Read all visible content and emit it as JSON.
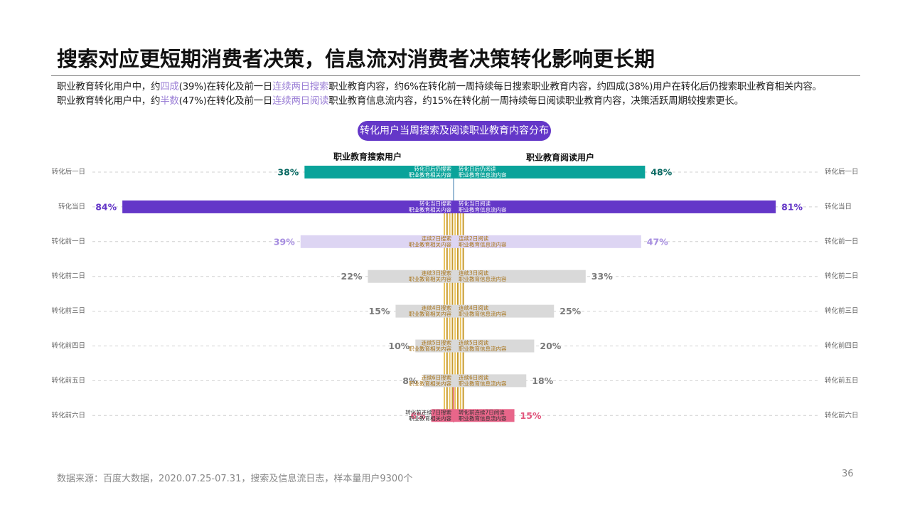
{
  "header": {
    "title": "搜索对应更短期消费者决策，信息流对消费者决策转化影响更长期",
    "subtitle": [
      [
        {
          "text": "职业教育转化用户中，约"
        },
        {
          "text": "四成",
          "color": "#9b7fd6"
        },
        {
          "text": "(39%)在转化及前一日"
        },
        {
          "text": "连续两日搜索",
          "color": "#9b7fd6"
        },
        {
          "text": "职业教育内容，约6%在转化前一周持续每日搜索职业教育内容，约四成(38%)用户在转化后仍搜索职业教育相关内容。"
        }
      ],
      [
        {
          "text": "职业教育转化用户中，约"
        },
        {
          "text": "半数",
          "color": "#9b7fd6"
        },
        {
          "text": "(47%)在转化及前一日"
        },
        {
          "text": "连续两日阅读",
          "color": "#9b7fd6"
        },
        {
          "text": "职业教育信息流内容，约15%在转化前一周持续每日阅读职业教育内容，决策活跃周期较搜索更长。"
        }
      ]
    ]
  },
  "chart_data": {
    "type": "butterfly",
    "title": "转化用户当周搜索及阅读职业教育内容分布",
    "categories": [
      "转化后一日",
      "转化当日",
      "转化前一日",
      "转化前二日",
      "转化前三日",
      "转化前四日",
      "转化前五日",
      "转化前六日"
    ],
    "bar_colors": [
      "#0aa39a",
      "#6437c8",
      "#ddd5f3",
      "#d9d9d9",
      "#d9d9d9",
      "#d9d9d9",
      "#d9d9d9",
      "#e8668a"
    ],
    "value_label_colors": [
      "#0b6b64",
      "#6437c8",
      "#a68de0",
      "#7a7a7a",
      "#7a7a7a",
      "#7a7a7a",
      "#7a7a7a",
      "#e2557c"
    ],
    "inner_label_colors": [
      "#ffffff",
      "#ffffff",
      "#a8741a",
      "#a8741a",
      "#a8741a",
      "#a8741a",
      "#a8741a",
      "#333333"
    ],
    "series": [
      {
        "name": "职业教育搜索用户",
        "side": "left",
        "values": [
          38,
          84,
          39,
          22,
          15,
          10,
          8,
          6
        ],
        "value_labels": [
          "38%",
          "84%",
          "39%",
          "22%",
          "15%",
          "10%",
          "8%",
          "6%"
        ],
        "inner_labels": [
          [
            "转化日后仍搜索",
            "职业教育相关内容"
          ],
          [
            "转化当日搜索",
            "职业教育相关内容"
          ],
          [
            "连续2日搜索",
            "职业教育相关内容"
          ],
          [
            "连续3日搜索",
            "职业教育相关内容"
          ],
          [
            "连续4日搜索",
            "职业教育相关内容"
          ],
          [
            "连续5日搜索",
            "职业教育相关内容"
          ],
          [
            "连续6日搜索",
            "职业教育相关内容"
          ],
          [
            "转化前连续7日搜索",
            "职业教育相关内容"
          ]
        ]
      },
      {
        "name": "职业教育阅读用户",
        "side": "right",
        "values": [
          48,
          81,
          47,
          33,
          25,
          20,
          18,
          15
        ],
        "value_labels": [
          "48%",
          "81%",
          "47%",
          "33%",
          "25%",
          "20%",
          "18%",
          "15%"
        ],
        "inner_labels": [
          [
            "转化日后仍阅读",
            "职业教育信息流内容"
          ],
          [
            "转化当日阅读",
            "职业教育信息流内容"
          ],
          [
            "连续2日阅读",
            "职业教育信息流内容"
          ],
          [
            "连续3日阅读",
            "职业教育信息流内容"
          ],
          [
            "连续4日阅读",
            "职业教育信息流内容"
          ],
          [
            "连续5日阅读",
            "职业教育信息流内容"
          ],
          [
            "连续6日阅读",
            "职业教育信息流内容"
          ],
          [
            "转化前连续7日阅读",
            "职业教育信息流内容"
          ]
        ]
      }
    ]
  },
  "footer": {
    "source": "数据来源：百度大数据，2020.07.25-07.31，搜索及信息流日志，样本量用户9300个",
    "page": "36"
  }
}
